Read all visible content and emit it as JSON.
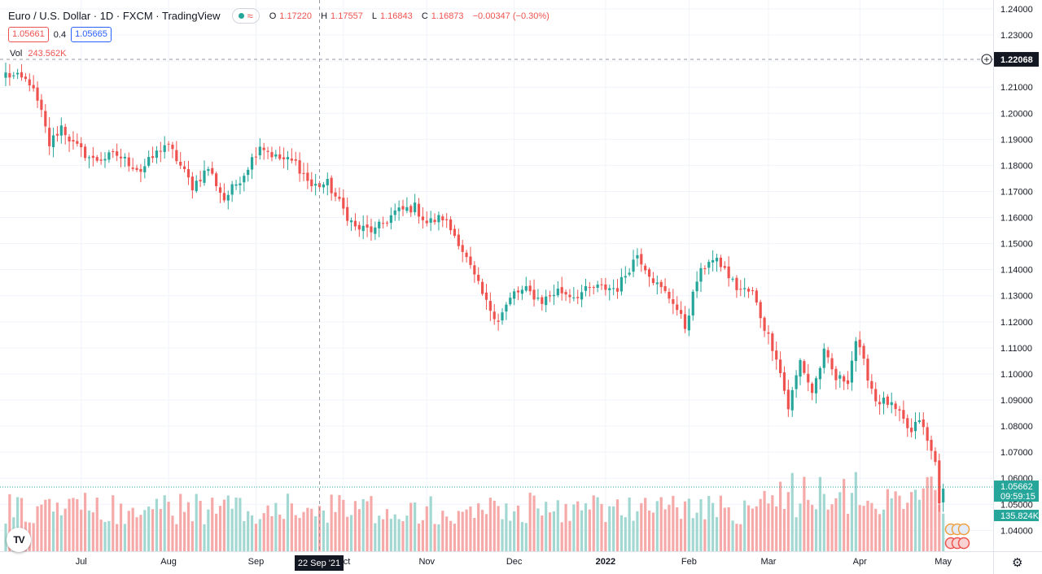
{
  "header": {
    "title": "Euro / U.S. Dollar · 1D · FXCM · TradingView",
    "live_wave": "≈",
    "ohlc": {
      "o_label": "O",
      "o_value": "1.17220",
      "h_label": "H",
      "h_value": "1.17557",
      "l_label": "L",
      "l_value": "1.16843",
      "c_label": "C",
      "c_value": "1.16873",
      "change": "−0.00347 (−0.30%)"
    }
  },
  "quotes": {
    "sell": "1.05661",
    "spread": "0.4",
    "buy": "1.05665"
  },
  "volume_legend": {
    "label": "Vol",
    "value": "243.562K"
  },
  "crosshair": {
    "price_label": "1.22068",
    "date_label": "22 Sep '21"
  },
  "last_price": {
    "price": "1.05662",
    "countdown": "09:59:15"
  },
  "last_volume": "135.824K",
  "colors": {
    "up": "#26a69a",
    "down": "#ef5350",
    "up_vol": "#a3d8d2",
    "down_vol": "#f5a9a8",
    "crosshair_tag": "#131722"
  },
  "icons": {
    "settings": "gear-icon",
    "logo": "tradingview-logo-icon",
    "add": "plus-circle-icon"
  },
  "logo_text": "TV",
  "chart_data": {
    "type": "candlestick",
    "symbol": "EURUSD",
    "interval": "1D",
    "y_range": [
      1.032,
      1.2425
    ],
    "y_ticks": [
      "1.24000",
      "1.23000",
      "1.22000",
      "1.21000",
      "1.20000",
      "1.19000",
      "1.18000",
      "1.17000",
      "1.16000",
      "1.15000",
      "1.14000",
      "1.13000",
      "1.12000",
      "1.11000",
      "1.10000",
      "1.09000",
      "1.08000",
      "1.07000",
      "1.06000",
      "1.05000",
      "1.04000"
    ],
    "x_ticks": [
      {
        "label": "Jul",
        "bar": 19
      },
      {
        "label": "Aug",
        "bar": 41
      },
      {
        "label": "Sep",
        "bar": 63
      },
      {
        "label": "Oct",
        "bar": 85
      },
      {
        "label": "Nov",
        "bar": 106
      },
      {
        "label": "Dec",
        "bar": 128
      },
      {
        "label": "2022",
        "bar": 151
      },
      {
        "label": "Feb",
        "bar": 172
      },
      {
        "label": "Mar",
        "bar": 192
      },
      {
        "label": "Apr",
        "bar": 215
      },
      {
        "label": "May",
        "bar": 236
      }
    ],
    "close_waypoints": [
      [
        0,
        1.215
      ],
      [
        6,
        1.212
      ],
      [
        9,
        1.2
      ],
      [
        11,
        1.188
      ],
      [
        14,
        1.195
      ],
      [
        17,
        1.188
      ],
      [
        22,
        1.182
      ],
      [
        28,
        1.184
      ],
      [
        34,
        1.178
      ],
      [
        40,
        1.188
      ],
      [
        42,
        1.185
      ],
      [
        47,
        1.172
      ],
      [
        51,
        1.179
      ],
      [
        55,
        1.167
      ],
      [
        60,
        1.177
      ],
      [
        64,
        1.188
      ],
      [
        68,
        1.183
      ],
      [
        73,
        1.181
      ],
      [
        77,
        1.172
      ],
      [
        81,
        1.173
      ],
      [
        85,
        1.163
      ],
      [
        88,
        1.156
      ],
      [
        93,
        1.155
      ],
      [
        98,
        1.162
      ],
      [
        103,
        1.164
      ],
      [
        106,
        1.158
      ],
      [
        110,
        1.16
      ],
      [
        114,
        1.151
      ],
      [
        118,
        1.137
      ],
      [
        121,
        1.127
      ],
      [
        124,
        1.121
      ],
      [
        128,
        1.131
      ],
      [
        131,
        1.132
      ],
      [
        135,
        1.128
      ],
      [
        139,
        1.132
      ],
      [
        143,
        1.13
      ],
      [
        148,
        1.133
      ],
      [
        154,
        1.133
      ],
      [
        159,
        1.146
      ],
      [
        164,
        1.134
      ],
      [
        168,
        1.128
      ],
      [
        171,
        1.118
      ],
      [
        174,
        1.136
      ],
      [
        177,
        1.144
      ],
      [
        180,
        1.142
      ],
      [
        184,
        1.133
      ],
      [
        188,
        1.131
      ],
      [
        191,
        1.118
      ],
      [
        194,
        1.107
      ],
      [
        197,
        1.087
      ],
      [
        200,
        1.105
      ],
      [
        203,
        1.093
      ],
      [
        206,
        1.108
      ],
      [
        209,
        1.098
      ],
      [
        212,
        1.098
      ],
      [
        214,
        1.113
      ],
      [
        216,
        1.104
      ],
      [
        219,
        1.09
      ],
      [
        222,
        1.089
      ],
      [
        225,
        1.084
      ],
      [
        228,
        1.077
      ],
      [
        230,
        1.083
      ],
      [
        232,
        1.074
      ],
      [
        234,
        1.066
      ],
      [
        235,
        1.052
      ],
      [
        236,
        1.056
      ]
    ]
  }
}
